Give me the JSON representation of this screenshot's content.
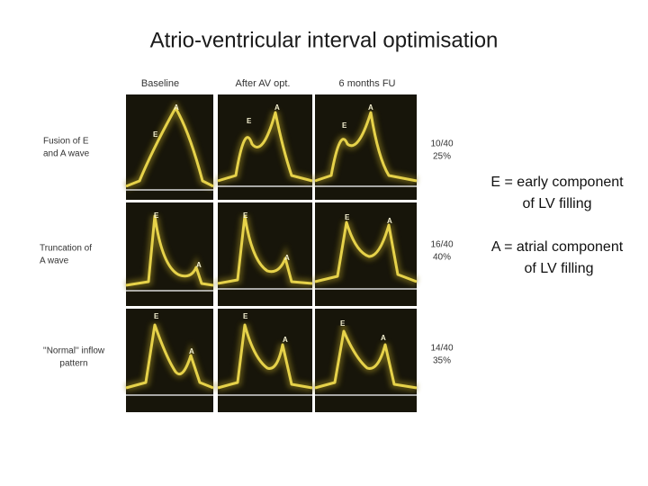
{
  "title": "Atrio-ventricular interval optimisation",
  "columns": [
    "Baseline",
    "After AV opt.",
    "6 months FU"
  ],
  "rows": [
    {
      "label": [
        "Fusion of E",
        "and A wave"
      ],
      "ratio": "10/40",
      "percent": "25%"
    },
    {
      "label": [
        "Truncation of",
        "A wave"
      ],
      "ratio": "16/40",
      "percent": "40%"
    },
    {
      "label": [
        "''Normal'' inflow",
        "pattern"
      ],
      "ratio": "14/40",
      "percent": "35%"
    }
  ],
  "panels": [
    [
      {
        "e": "E",
        "a": "A"
      },
      {
        "e": "E",
        "a": "A"
      },
      {
        "e": "E",
        "a": "A"
      }
    ],
    [
      {
        "e": "E",
        "a": "A"
      },
      {
        "e": "E",
        "a": "A"
      },
      {
        "e": "E",
        "a": "A"
      }
    ],
    [
      {
        "e": "E",
        "a": "A"
      },
      {
        "e": "E",
        "a": "A"
      },
      {
        "e": "E",
        "a": "A"
      }
    ]
  ],
  "definitions": [
    [
      "E = early component",
      "of LV filling"
    ],
    [
      "A = atrial component",
      "of LV filling"
    ]
  ]
}
